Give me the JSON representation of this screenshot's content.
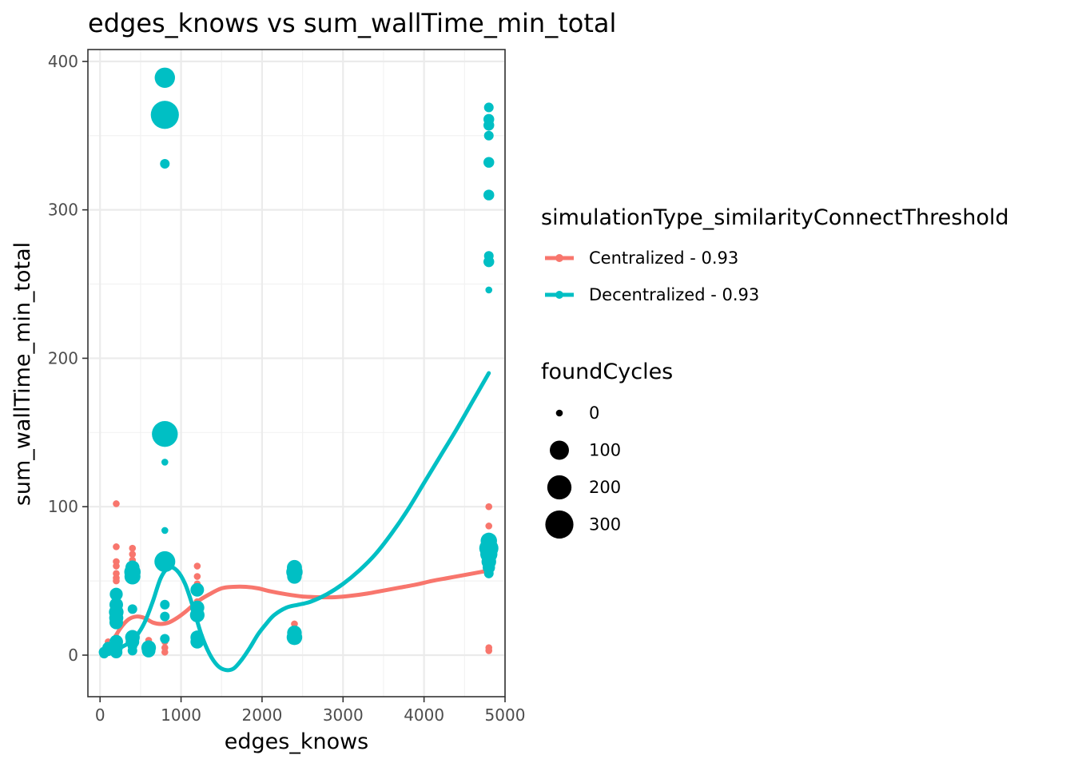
{
  "chart_data": {
    "type": "scatter",
    "title": "edges_knows  vs  sum_wallTime_min_total",
    "xlabel": "edges_knows",
    "ylabel": "sum_wallTime_min_total",
    "xlim": [
      -150,
      5000
    ],
    "ylim": [
      -28,
      408
    ],
    "x_ticks": [
      0,
      1000,
      2000,
      3000,
      4000,
      5000
    ],
    "y_ticks": [
      0,
      100,
      200,
      300,
      400
    ],
    "grid": true,
    "legend": {
      "position": "right",
      "color_title": "simulationType_similarityConnectThreshold",
      "size_title": "foundCycles",
      "size_entries": [
        0,
        100,
        200,
        300
      ]
    },
    "series": [
      {
        "name": "Centralized - 0.93",
        "color": "#F8766D",
        "points": [
          {
            "x": 50,
            "y": 1,
            "size": 0
          },
          {
            "x": 50,
            "y": 2,
            "size": 0
          },
          {
            "x": 100,
            "y": 6,
            "size": 0
          },
          {
            "x": 100,
            "y": 9,
            "size": 0
          },
          {
            "x": 100,
            "y": 4,
            "size": 0
          },
          {
            "x": 200,
            "y": 102,
            "size": 0
          },
          {
            "x": 200,
            "y": 73,
            "size": 0
          },
          {
            "x": 200,
            "y": 63,
            "size": 0
          },
          {
            "x": 200,
            "y": 60,
            "size": 0
          },
          {
            "x": 200,
            "y": 55,
            "size": 0
          },
          {
            "x": 200,
            "y": 52,
            "size": 0
          },
          {
            "x": 200,
            "y": 50,
            "size": 0
          },
          {
            "x": 200,
            "y": 12,
            "size": 0
          },
          {
            "x": 200,
            "y": 10,
            "size": 0
          },
          {
            "x": 200,
            "y": 8,
            "size": 0
          },
          {
            "x": 200,
            "y": 5,
            "size": 0
          },
          {
            "x": 400,
            "y": 72,
            "size": 0
          },
          {
            "x": 400,
            "y": 68,
            "size": 0
          },
          {
            "x": 400,
            "y": 64,
            "size": 0
          },
          {
            "x": 400,
            "y": 60,
            "size": 0
          },
          {
            "x": 400,
            "y": 57,
            "size": 0
          },
          {
            "x": 400,
            "y": 53,
            "size": 0
          },
          {
            "x": 400,
            "y": 12,
            "size": 0
          },
          {
            "x": 400,
            "y": 8,
            "size": 0
          },
          {
            "x": 400,
            "y": 5,
            "size": 0
          },
          {
            "x": 400,
            "y": 3,
            "size": 0
          },
          {
            "x": 600,
            "y": 10,
            "size": 0
          },
          {
            "x": 600,
            "y": 8,
            "size": 0
          },
          {
            "x": 600,
            "y": 6,
            "size": 0
          },
          {
            "x": 600,
            "y": 4,
            "size": 0
          },
          {
            "x": 600,
            "y": 2,
            "size": 0
          },
          {
            "x": 800,
            "y": 61,
            "size": 0
          },
          {
            "x": 800,
            "y": 9,
            "size": 0
          },
          {
            "x": 800,
            "y": 5,
            "size": 0
          },
          {
            "x": 800,
            "y": 2,
            "size": 0
          },
          {
            "x": 1200,
            "y": 60,
            "size": 0
          },
          {
            "x": 1200,
            "y": 53,
            "size": 0
          },
          {
            "x": 1200,
            "y": 48,
            "size": 0
          },
          {
            "x": 1200,
            "y": 42,
            "size": 0
          },
          {
            "x": 1200,
            "y": 36,
            "size": 0
          },
          {
            "x": 1200,
            "y": 30,
            "size": 0
          },
          {
            "x": 1200,
            "y": 25,
            "size": 0
          },
          {
            "x": 1200,
            "y": 12,
            "size": 0
          },
          {
            "x": 1200,
            "y": 10,
            "size": 0
          },
          {
            "x": 2400,
            "y": 61,
            "size": 0
          },
          {
            "x": 2400,
            "y": 58,
            "size": 0
          },
          {
            "x": 2400,
            "y": 55,
            "size": 0
          },
          {
            "x": 2400,
            "y": 21,
            "size": 0
          },
          {
            "x": 2400,
            "y": 18,
            "size": 0
          },
          {
            "x": 2400,
            "y": 15,
            "size": 0
          },
          {
            "x": 4800,
            "y": 100,
            "size": 0
          },
          {
            "x": 4800,
            "y": 87,
            "size": 0
          },
          {
            "x": 4800,
            "y": 76,
            "size": 0
          },
          {
            "x": 4800,
            "y": 72,
            "size": 0
          },
          {
            "x": 4800,
            "y": 68,
            "size": 0
          },
          {
            "x": 4800,
            "y": 65,
            "size": 0
          },
          {
            "x": 4800,
            "y": 5,
            "size": 0
          },
          {
            "x": 4800,
            "y": 3,
            "size": 0
          }
        ],
        "smooth": [
          {
            "x": 50,
            "y": 1
          },
          {
            "x": 150,
            "y": 9
          },
          {
            "x": 250,
            "y": 18
          },
          {
            "x": 350,
            "y": 24
          },
          {
            "x": 450,
            "y": 26
          },
          {
            "x": 550,
            "y": 25
          },
          {
            "x": 650,
            "y": 22
          },
          {
            "x": 750,
            "y": 21
          },
          {
            "x": 850,
            "y": 22
          },
          {
            "x": 950,
            "y": 25
          },
          {
            "x": 1050,
            "y": 29
          },
          {
            "x": 1200,
            "y": 36
          },
          {
            "x": 1350,
            "y": 41
          },
          {
            "x": 1500,
            "y": 45
          },
          {
            "x": 1650,
            "y": 46
          },
          {
            "x": 1800,
            "y": 46
          },
          {
            "x": 1950,
            "y": 45
          },
          {
            "x": 2100,
            "y": 43
          },
          {
            "x": 2300,
            "y": 41
          },
          {
            "x": 2500,
            "y": 39.5
          },
          {
            "x": 2700,
            "y": 39
          },
          {
            "x": 2900,
            "y": 39
          },
          {
            "x": 3100,
            "y": 40
          },
          {
            "x": 3300,
            "y": 41.5
          },
          {
            "x": 3500,
            "y": 43.5
          },
          {
            "x": 3700,
            "y": 45.5
          },
          {
            "x": 3900,
            "y": 47.5
          },
          {
            "x": 4100,
            "y": 50
          },
          {
            "x": 4300,
            "y": 52
          },
          {
            "x": 4500,
            "y": 54
          },
          {
            "x": 4800,
            "y": 57
          }
        ]
      },
      {
        "name": "Decentralized - 0.93",
        "color": "#00BFC4",
        "points": [
          {
            "x": 50,
            "y": 1,
            "size": 5
          },
          {
            "x": 50,
            "y": 2,
            "size": 10
          },
          {
            "x": 100,
            "y": 3,
            "size": 10
          },
          {
            "x": 100,
            "y": 5,
            "size": 15
          },
          {
            "x": 200,
            "y": 41,
            "size": 25
          },
          {
            "x": 200,
            "y": 34,
            "size": 30
          },
          {
            "x": 200,
            "y": 29,
            "size": 40
          },
          {
            "x": 200,
            "y": 25,
            "size": 35
          },
          {
            "x": 200,
            "y": 22,
            "size": 30
          },
          {
            "x": 200,
            "y": 9,
            "size": 30
          },
          {
            "x": 200,
            "y": 5,
            "size": 25
          },
          {
            "x": 200,
            "y": 2,
            "size": 20
          },
          {
            "x": 400,
            "y": 59,
            "size": 35
          },
          {
            "x": 400,
            "y": 56,
            "size": 60
          },
          {
            "x": 400,
            "y": 53,
            "size": 55
          },
          {
            "x": 400,
            "y": 31,
            "size": 5
          },
          {
            "x": 400,
            "y": 12,
            "size": 40
          },
          {
            "x": 400,
            "y": 9,
            "size": 30
          },
          {
            "x": 400,
            "y": 6,
            "size": 5
          },
          {
            "x": 400,
            "y": 3,
            "size": 5
          },
          {
            "x": 600,
            "y": 5,
            "size": 40
          },
          {
            "x": 600,
            "y": 3,
            "size": 30
          },
          {
            "x": 800,
            "y": 389,
            "size": 120
          },
          {
            "x": 800,
            "y": 364,
            "size": 300
          },
          {
            "x": 800,
            "y": 331,
            "size": 5
          },
          {
            "x": 800,
            "y": 149,
            "size": 240
          },
          {
            "x": 800,
            "y": 130,
            "size": 0
          },
          {
            "x": 800,
            "y": 84,
            "size": 0
          },
          {
            "x": 800,
            "y": 63,
            "size": 130
          },
          {
            "x": 800,
            "y": 34,
            "size": 5
          },
          {
            "x": 800,
            "y": 26,
            "size": 5
          },
          {
            "x": 800,
            "y": 11,
            "size": 5
          },
          {
            "x": 1200,
            "y": 44,
            "size": 30
          },
          {
            "x": 1200,
            "y": 32,
            "size": 35
          },
          {
            "x": 1200,
            "y": 27,
            "size": 40
          },
          {
            "x": 1200,
            "y": 12,
            "size": 30
          },
          {
            "x": 1200,
            "y": 9,
            "size": 30
          },
          {
            "x": 2400,
            "y": 59,
            "size": 45
          },
          {
            "x": 2400,
            "y": 56,
            "size": 60
          },
          {
            "x": 2400,
            "y": 53,
            "size": 40
          },
          {
            "x": 2400,
            "y": 15,
            "size": 40
          },
          {
            "x": 2400,
            "y": 12,
            "size": 50
          },
          {
            "x": 4800,
            "y": 369,
            "size": 5
          },
          {
            "x": 4800,
            "y": 361,
            "size": 10
          },
          {
            "x": 4800,
            "y": 357,
            "size": 10
          },
          {
            "x": 4800,
            "y": 350,
            "size": 5
          },
          {
            "x": 4800,
            "y": 332,
            "size": 10
          },
          {
            "x": 4800,
            "y": 310,
            "size": 10
          },
          {
            "x": 4800,
            "y": 269,
            "size": 5
          },
          {
            "x": 4800,
            "y": 265,
            "size": 10
          },
          {
            "x": 4800,
            "y": 246,
            "size": 0
          },
          {
            "x": 4800,
            "y": 77,
            "size": 60
          },
          {
            "x": 4800,
            "y": 72,
            "size": 100
          },
          {
            "x": 4800,
            "y": 68,
            "size": 70
          },
          {
            "x": 4800,
            "y": 63,
            "size": 40
          },
          {
            "x": 4800,
            "y": 59,
            "size": 20
          },
          {
            "x": 4800,
            "y": 55,
            "size": 5
          }
        ],
        "smooth": [
          {
            "x": 50,
            "y": 0
          },
          {
            "x": 150,
            "y": 2
          },
          {
            "x": 250,
            "y": 5
          },
          {
            "x": 350,
            "y": 8
          },
          {
            "x": 450,
            "y": 13
          },
          {
            "x": 550,
            "y": 22
          },
          {
            "x": 650,
            "y": 36
          },
          {
            "x": 750,
            "y": 52
          },
          {
            "x": 850,
            "y": 59
          },
          {
            "x": 950,
            "y": 57
          },
          {
            "x": 1050,
            "y": 48
          },
          {
            "x": 1150,
            "y": 32
          },
          {
            "x": 1250,
            "y": 14
          },
          {
            "x": 1350,
            "y": 1
          },
          {
            "x": 1450,
            "y": -7
          },
          {
            "x": 1550,
            "y": -10
          },
          {
            "x": 1650,
            "y": -9
          },
          {
            "x": 1750,
            "y": -3
          },
          {
            "x": 1850,
            "y": 5
          },
          {
            "x": 1950,
            "y": 14
          },
          {
            "x": 2050,
            "y": 21
          },
          {
            "x": 2150,
            "y": 27
          },
          {
            "x": 2300,
            "y": 32
          },
          {
            "x": 2450,
            "y": 34
          },
          {
            "x": 2600,
            "y": 36
          },
          {
            "x": 2800,
            "y": 41
          },
          {
            "x": 3000,
            "y": 48
          },
          {
            "x": 3200,
            "y": 57
          },
          {
            "x": 3400,
            "y": 68
          },
          {
            "x": 3600,
            "y": 82
          },
          {
            "x": 3800,
            "y": 98
          },
          {
            "x": 4000,
            "y": 116
          },
          {
            "x": 4200,
            "y": 134
          },
          {
            "x": 4400,
            "y": 152
          },
          {
            "x": 4600,
            "y": 171
          },
          {
            "x": 4800,
            "y": 190
          }
        ]
      }
    ]
  }
}
